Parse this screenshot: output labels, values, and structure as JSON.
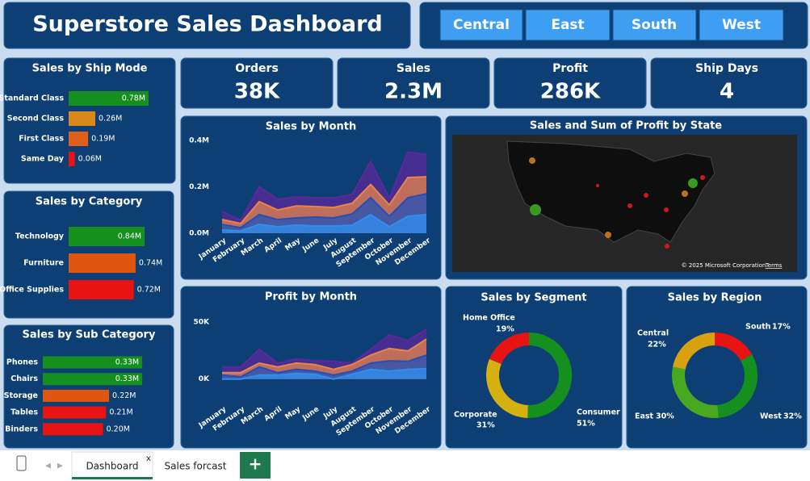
{
  "header": {
    "title": "Superstore Sales Dashboard"
  },
  "slicers": [
    "Central",
    "East",
    "South",
    "West"
  ],
  "kpis": [
    {
      "label": "Orders",
      "value": "38K"
    },
    {
      "label": "Sales",
      "value": "2.3M"
    },
    {
      "label": "Profit",
      "value": "286K"
    },
    {
      "label": "Ship Days",
      "value": "4"
    }
  ],
  "chart_data": [
    {
      "type": "bar",
      "orientation": "horizontal",
      "title": "Sales by Ship Mode",
      "categories": [
        "Standard Class",
        "Second Class",
        "First Class",
        "Same Day"
      ],
      "values": [
        0.78,
        0.26,
        0.19,
        0.06
      ],
      "value_labels": [
        "0.78M",
        "0.26M",
        "0.19M",
        "0.06M"
      ],
      "colors": [
        "#15901f",
        "#d9891a",
        "#e0601a",
        "#e81313"
      ]
    },
    {
      "type": "bar",
      "orientation": "horizontal",
      "title": "Sales by Category",
      "categories": [
        "Technology",
        "Furniture",
        "Office Supplies"
      ],
      "values": [
        0.84,
        0.74,
        0.72
      ],
      "value_labels": [
        "0.84M",
        "0.74M",
        "0.72M"
      ],
      "colors": [
        "#15901f",
        "#e0560f",
        "#e81313"
      ]
    },
    {
      "type": "bar",
      "orientation": "horizontal",
      "title": "Sales by Sub Category",
      "categories": [
        "Phones",
        "Chairs",
        "Storage",
        "Tables",
        "Binders"
      ],
      "values": [
        0.33,
        0.33,
        0.22,
        0.21,
        0.2
      ],
      "value_labels": [
        "0.33M",
        "0.33M",
        "0.22M",
        "0.21M",
        "0.20M"
      ],
      "colors": [
        "#15901f",
        "#15901f",
        "#e0560f",
        "#e81313",
        "#e81313"
      ]
    },
    {
      "type": "area",
      "title": "Sales by Month",
      "categories": [
        "January",
        "February",
        "March",
        "April",
        "May",
        "June",
        "July",
        "August",
        "September",
        "October",
        "November",
        "December"
      ],
      "series": [
        {
          "color": "#5a2a9a",
          "values": [
            0.094,
            0.056,
            0.2,
            0.146,
            0.157,
            0.153,
            0.153,
            0.167,
            0.31,
            0.15,
            0.35,
            0.34
          ]
        },
        {
          "color": "#e8844a",
          "values": [
            0.059,
            0.042,
            0.136,
            0.1,
            0.118,
            0.115,
            0.111,
            0.129,
            0.21,
            0.122,
            0.24,
            0.243
          ]
        },
        {
          "color": "#2050b8",
          "values": [
            0.038,
            0.024,
            0.08,
            0.059,
            0.066,
            0.07,
            0.066,
            0.083,
            0.153,
            0.073,
            0.153,
            0.17
          ]
        },
        {
          "color": "#2f8ff0",
          "values": [
            0.014,
            0.01,
            0.038,
            0.028,
            0.035,
            0.031,
            0.031,
            0.035,
            0.08,
            0.028,
            0.073,
            0.08
          ]
        }
      ],
      "ylim": [
        0,
        0.4
      ],
      "yticks": [
        {
          "value": 0,
          "label": "0.0M"
        },
        {
          "value": 0.2,
          "label": "0.2M"
        },
        {
          "value": 0.4,
          "label": "0.4M"
        }
      ],
      "grid": false
    },
    {
      "type": "area",
      "title": "Profit by Month",
      "categories": [
        "January",
        "February",
        "March",
        "April",
        "May",
        "June",
        "July",
        "August",
        "September",
        "October",
        "November",
        "December"
      ],
      "series": [
        {
          "color": "#5a2a9a",
          "values": [
            10.6,
            10.6,
            26,
            14,
            17.6,
            16,
            15.5,
            14,
            26,
            38.7,
            33.8,
            43.7
          ]
        },
        {
          "color": "#e8844a",
          "values": [
            5.6,
            5.6,
            14,
            10.6,
            14,
            12.7,
            8.5,
            12.7,
            21,
            26.8,
            24.6,
            35
          ]
        },
        {
          "color": "#2050b8",
          "values": [
            3.5,
            2,
            10.6,
            5.6,
            8.5,
            7,
            3.5,
            7,
            14,
            16,
            15.5,
            21
          ]
        },
        {
          "color": "#2f8ff0",
          "values": [
            0,
            0,
            3.5,
            3.5,
            4.9,
            4.2,
            0,
            4.2,
            8.5,
            7,
            8.5,
            9.2
          ]
        }
      ],
      "ylim": [
        -20,
        50
      ],
      "yticks": [
        {
          "value": 0,
          "label": "0K"
        },
        {
          "value": 50,
          "label": "50K"
        }
      ],
      "grid": false
    },
    {
      "type": "map",
      "title": "Sales and Sum of Profit by State",
      "attribution": "© 2025 Microsoft Corporation",
      "terms": "Terms"
    },
    {
      "type": "donut",
      "title": "Sales by Segment",
      "categories": [
        "Consumer",
        "Corporate",
        "Home Office"
      ],
      "values": [
        51,
        31,
        19
      ],
      "value_labels": [
        "51%",
        "31%",
        "19%"
      ],
      "colors": [
        "#15901f",
        "#d4b010",
        "#e81313"
      ]
    },
    {
      "type": "donut",
      "title": "Sales by Region",
      "categories": [
        "South",
        "West",
        "East",
        "Central"
      ],
      "values": [
        17,
        32,
        30,
        22
      ],
      "value_labels": [
        "17%",
        "32%",
        "30%",
        "22%"
      ],
      "colors": [
        "#e81313",
        "#15901f",
        "#48a820",
        "#d9a010"
      ]
    }
  ],
  "tabs": [
    "Dashboard",
    "Sales forcast"
  ]
}
